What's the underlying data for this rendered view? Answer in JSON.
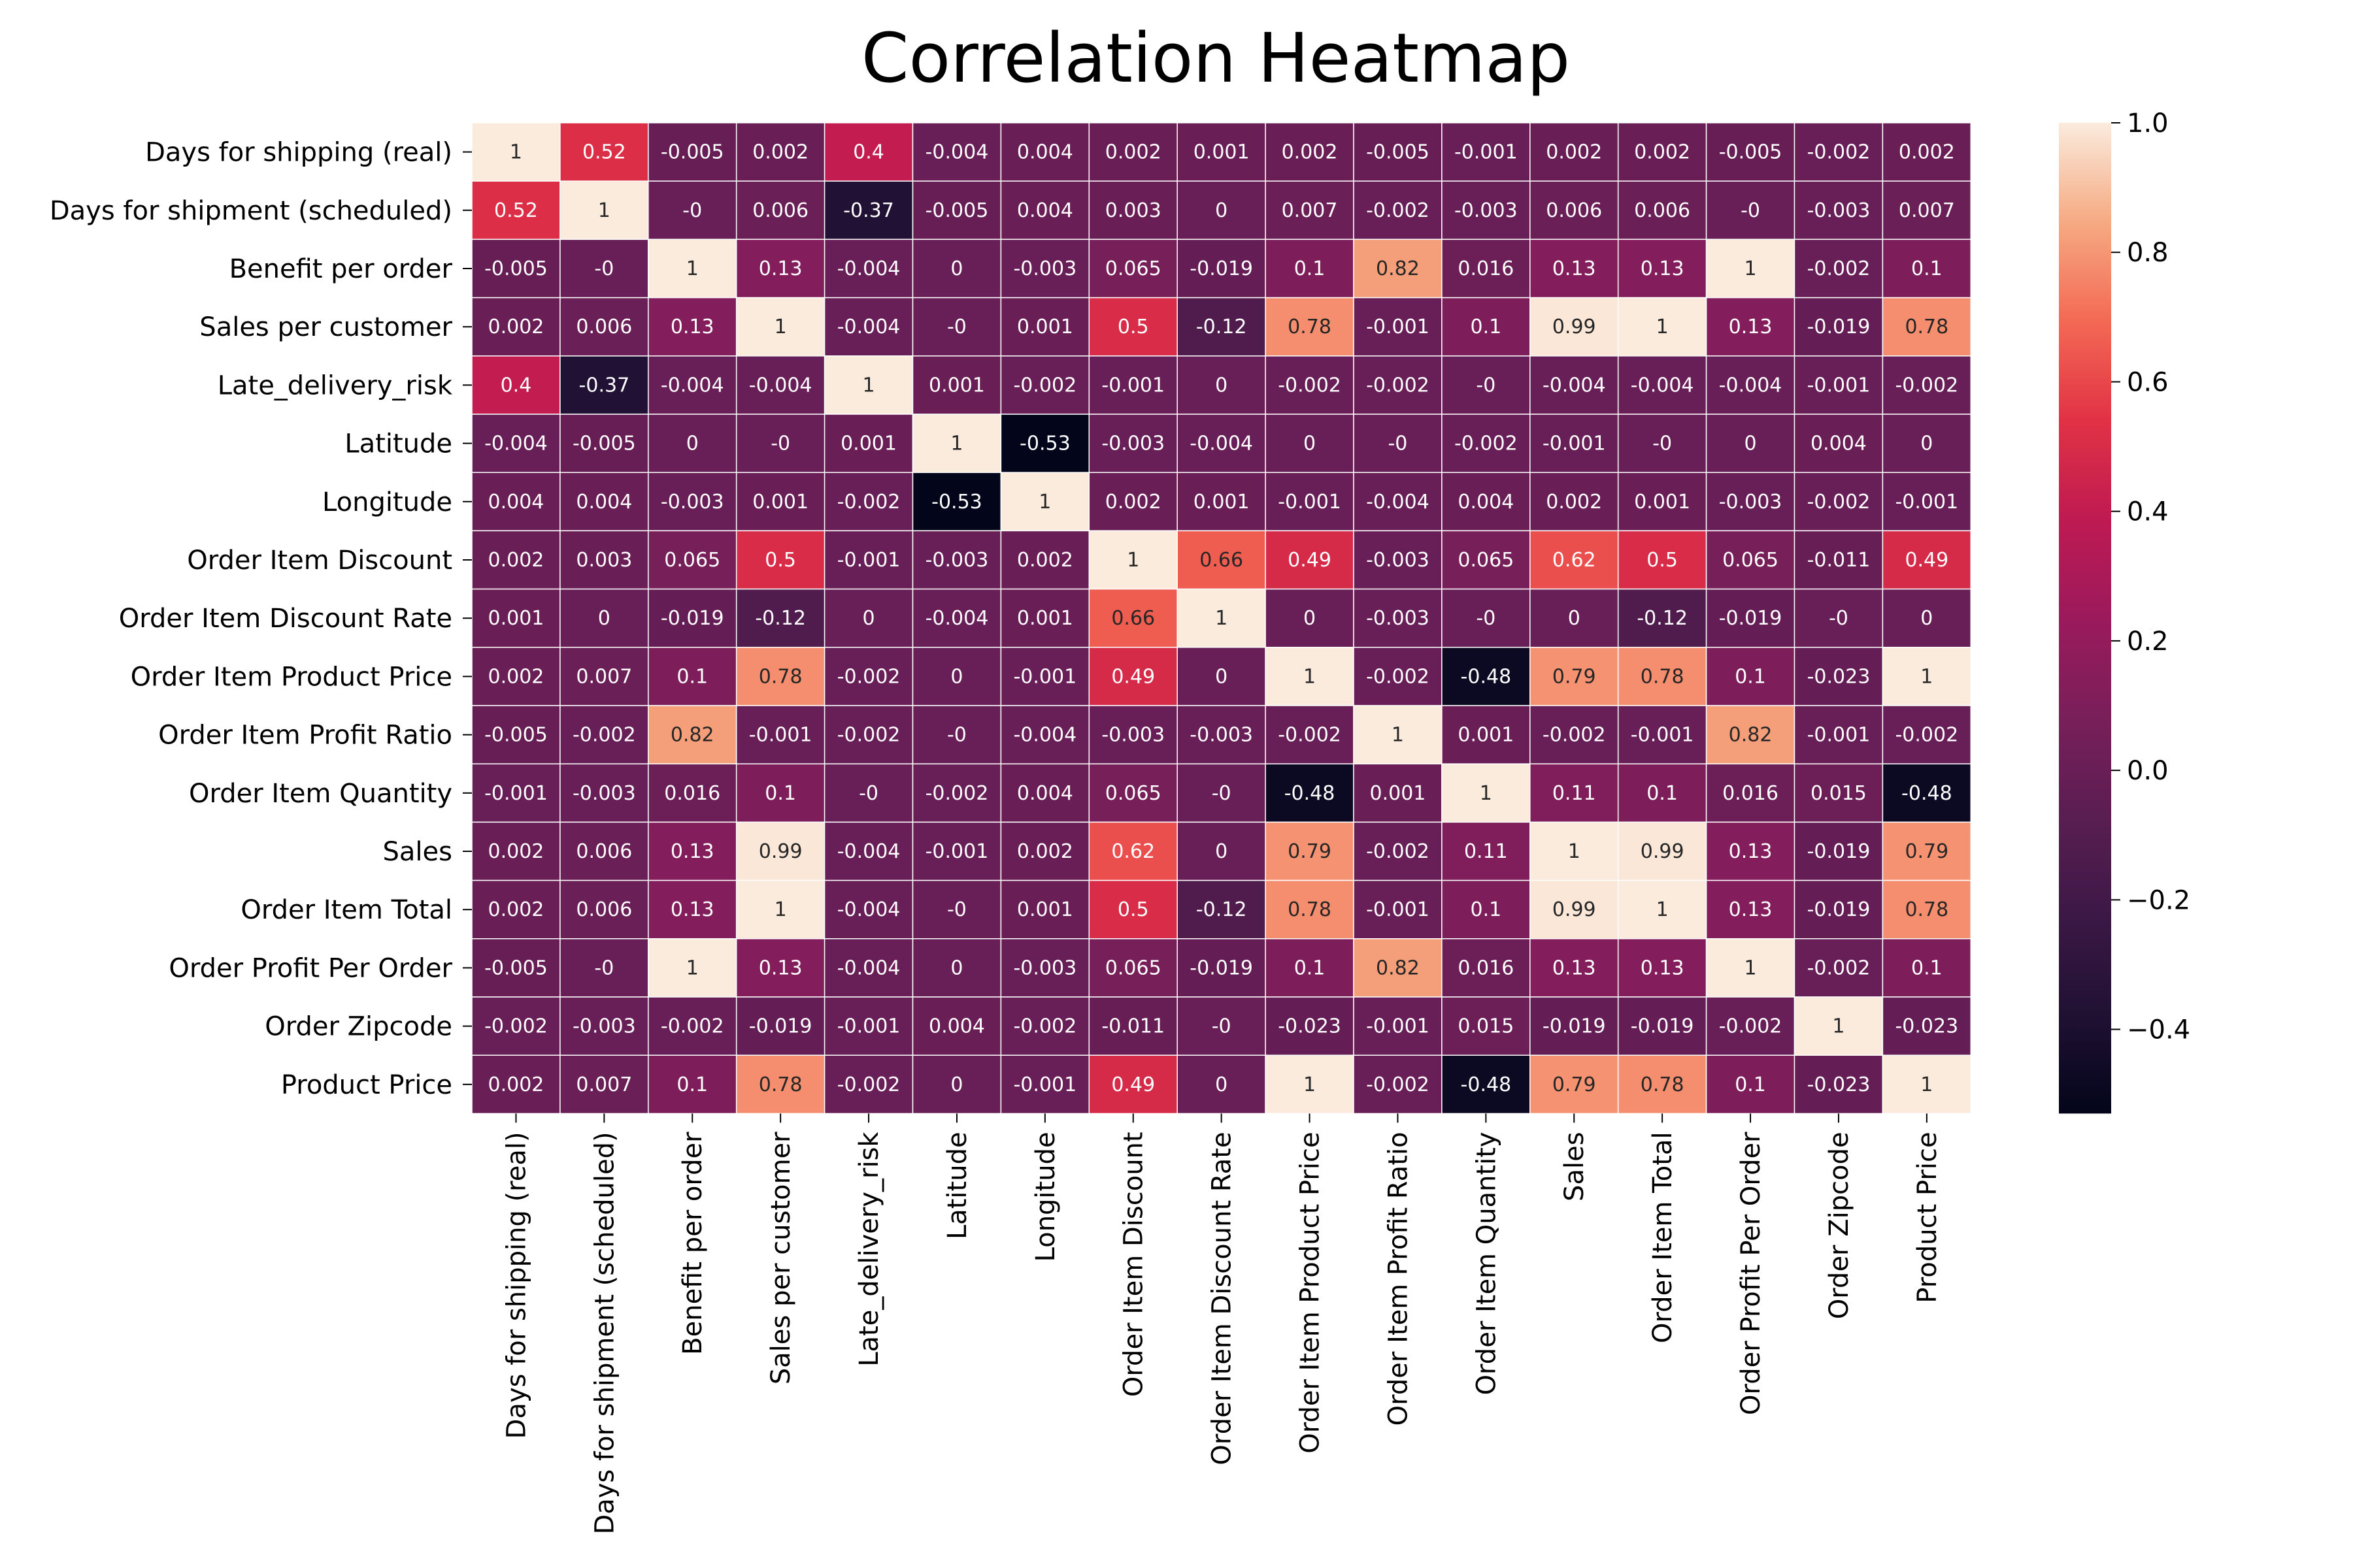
{
  "chart_data": {
    "type": "heatmap",
    "title": "Correlation Heatmap",
    "xlabel": "",
    "ylabel": "",
    "labels": [
      "Days for shipping (real)",
      "Days for shipment (scheduled)",
      "Benefit per order",
      "Sales per customer",
      "Late_delivery_risk",
      "Latitude",
      "Longitude",
      "Order Item Discount",
      "Order Item Discount Rate",
      "Order Item Product Price",
      "Order Item Profit Ratio",
      "Order Item Quantity",
      "Sales",
      "Order Item Total",
      "Order Profit Per Order",
      "Order Zipcode",
      "Product Price"
    ],
    "matrix": [
      [
        "1",
        "0.52",
        "-0.005",
        "0.002",
        "0.4",
        "-0.004",
        "0.004",
        "0.002",
        "0.001",
        "0.002",
        "-0.005",
        "-0.001",
        "0.002",
        "0.002",
        "-0.005",
        "-0.002",
        "0.002"
      ],
      [
        "0.52",
        "1",
        "-0",
        "0.006",
        "-0.37",
        "-0.005",
        "0.004",
        "0.003",
        "0",
        "0.007",
        "-0.002",
        "-0.003",
        "0.006",
        "0.006",
        "-0",
        "-0.003",
        "0.007"
      ],
      [
        "-0.005",
        "-0",
        "1",
        "0.13",
        "-0.004",
        "0",
        "-0.003",
        "0.065",
        "-0.019",
        "0.1",
        "0.82",
        "0.016",
        "0.13",
        "0.13",
        "1",
        "-0.002",
        "0.1"
      ],
      [
        "0.002",
        "0.006",
        "0.13",
        "1",
        "-0.004",
        "-0",
        "0.001",
        "0.5",
        "-0.12",
        "0.78",
        "-0.001",
        "0.1",
        "0.99",
        "1",
        "0.13",
        "-0.019",
        "0.78"
      ],
      [
        "0.4",
        "-0.37",
        "-0.004",
        "-0.004",
        "1",
        "0.001",
        "-0.002",
        "-0.001",
        "0",
        "-0.002",
        "-0.002",
        "-0",
        "-0.004",
        "-0.004",
        "-0.004",
        "-0.001",
        "-0.002"
      ],
      [
        "-0.004",
        "-0.005",
        "0",
        "-0",
        "0.001",
        "1",
        "-0.53",
        "-0.003",
        "-0.004",
        "0",
        "-0",
        "-0.002",
        "-0.001",
        "-0",
        "0",
        "0.004",
        "0"
      ],
      [
        "0.004",
        "0.004",
        "-0.003",
        "0.001",
        "-0.002",
        "-0.53",
        "1",
        "0.002",
        "0.001",
        "-0.001",
        "-0.004",
        "0.004",
        "0.002",
        "0.001",
        "-0.003",
        "-0.002",
        "-0.001"
      ],
      [
        "0.002",
        "0.003",
        "0.065",
        "0.5",
        "-0.001",
        "-0.003",
        "0.002",
        "1",
        "0.66",
        "0.49",
        "-0.003",
        "0.065",
        "0.62",
        "0.5",
        "0.065",
        "-0.011",
        "0.49"
      ],
      [
        "0.001",
        "0",
        "-0.019",
        "-0.12",
        "0",
        "-0.004",
        "0.001",
        "0.66",
        "1",
        "0",
        "-0.003",
        "-0",
        "0",
        "-0.12",
        "-0.019",
        "-0",
        "0"
      ],
      [
        "0.002",
        "0.007",
        "0.1",
        "0.78",
        "-0.002",
        "0",
        "-0.001",
        "0.49",
        "0",
        "1",
        "-0.002",
        "-0.48",
        "0.79",
        "0.78",
        "0.1",
        "-0.023",
        "1"
      ],
      [
        "-0.005",
        "-0.002",
        "0.82",
        "-0.001",
        "-0.002",
        "-0",
        "-0.004",
        "-0.003",
        "-0.003",
        "-0.002",
        "1",
        "0.001",
        "-0.002",
        "-0.001",
        "0.82",
        "-0.001",
        "-0.002"
      ],
      [
        "-0.001",
        "-0.003",
        "0.016",
        "0.1",
        "-0",
        "-0.002",
        "0.004",
        "0.065",
        "-0",
        "-0.48",
        "0.001",
        "1",
        "0.11",
        "0.1",
        "0.016",
        "0.015",
        "-0.48"
      ],
      [
        "0.002",
        "0.006",
        "0.13",
        "0.99",
        "-0.004",
        "-0.001",
        "0.002",
        "0.62",
        "0",
        "0.79",
        "-0.002",
        "0.11",
        "1",
        "0.99",
        "0.13",
        "-0.019",
        "0.79"
      ],
      [
        "0.002",
        "0.006",
        "0.13",
        "1",
        "-0.004",
        "-0",
        "0.001",
        "0.5",
        "-0.12",
        "0.78",
        "-0.001",
        "0.1",
        "0.99",
        "1",
        "0.13",
        "-0.019",
        "0.78"
      ],
      [
        "-0.005",
        "-0",
        "1",
        "0.13",
        "-0.004",
        "0",
        "-0.003",
        "0.065",
        "-0.019",
        "0.1",
        "0.82",
        "0.016",
        "0.13",
        "0.13",
        "1",
        "-0.002",
        "0.1"
      ],
      [
        "-0.002",
        "-0.003",
        "-0.002",
        "-0.019",
        "-0.001",
        "0.004",
        "-0.002",
        "-0.011",
        "-0",
        "-0.023",
        "-0.001",
        "0.015",
        "-0.019",
        "-0.019",
        "-0.002",
        "1",
        "-0.023"
      ],
      [
        "0.002",
        "0.007",
        "0.1",
        "0.78",
        "-0.002",
        "0",
        "-0.001",
        "0.49",
        "0",
        "1",
        "-0.002",
        "-0.48",
        "0.79",
        "0.78",
        "0.1",
        "-0.023",
        "1"
      ]
    ],
    "colorbar": {
      "min": -0.53,
      "max": 1.0,
      "ticks": [
        1.0,
        0.8,
        0.6,
        0.4,
        0.2,
        0.0,
        -0.2,
        -0.4
      ],
      "tick_labels": [
        "1.0",
        "0.8",
        "0.6",
        "0.4",
        "0.2",
        "0.0",
        "−0.2",
        "−0.4"
      ],
      "colormap": "rocket"
    },
    "grid": true,
    "legend": "colorbar-right"
  }
}
